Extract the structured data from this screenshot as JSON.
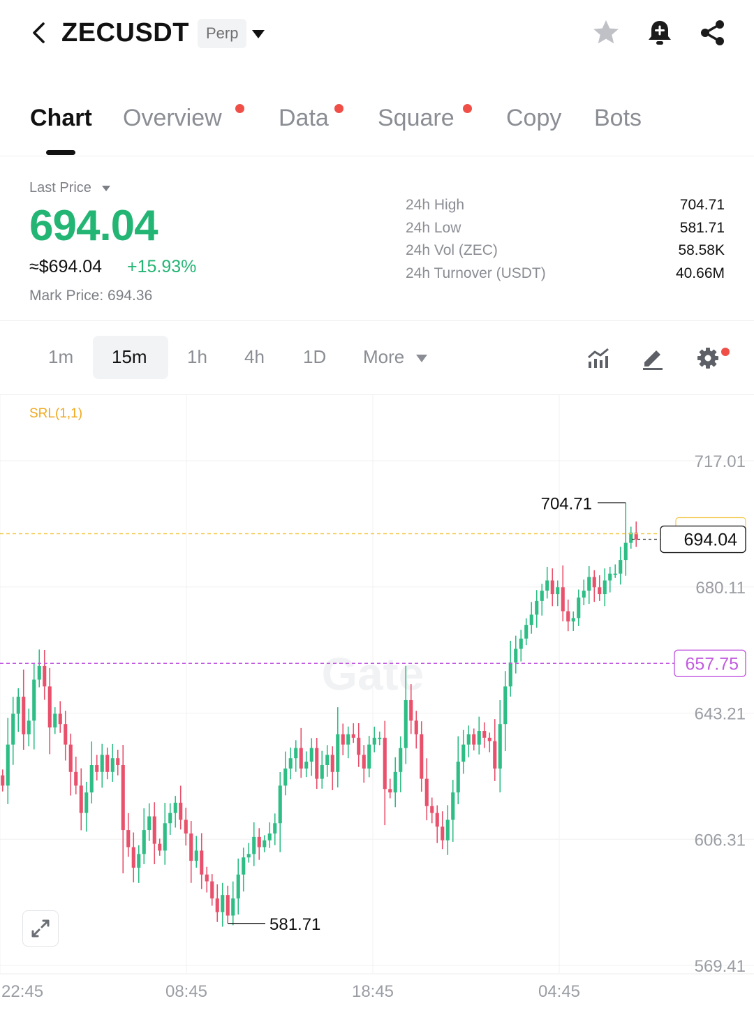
{
  "header": {
    "symbol": "ZECUSDT",
    "contract_type": "Perp",
    "icons": [
      "back-icon",
      "chevron-down-icon",
      "star-icon",
      "bell-icon",
      "share-icon"
    ]
  },
  "tabs": [
    {
      "label": "Chart",
      "active": true,
      "badge": false
    },
    {
      "label": "Overview",
      "active": false,
      "badge": true
    },
    {
      "label": "Data",
      "active": false,
      "badge": true
    },
    {
      "label": "Square",
      "active": false,
      "badge": true
    },
    {
      "label": "Copy",
      "active": false,
      "badge": false
    },
    {
      "label": "Bots",
      "active": false,
      "badge": false
    }
  ],
  "price": {
    "label": "Last Price",
    "last": "694.04",
    "approx_usd": "≈$694.04",
    "change_pct": "+15.93%",
    "mark_price": "Mark Price: 694.36"
  },
  "stats": [
    {
      "label": "24h High",
      "value": "704.71"
    },
    {
      "label": "24h Low",
      "value": "581.71"
    },
    {
      "label": "24h Vol (ZEC)",
      "value": "58.58K"
    },
    {
      "label": "24h Turnover (USDT)",
      "value": "40.66M"
    }
  ],
  "intervals": {
    "items": [
      "1m",
      "15m",
      "1h",
      "4h",
      "1D"
    ],
    "active": "15m",
    "more_label": "More"
  },
  "toolbar_icons": [
    "indicators-icon",
    "draw-icon",
    "settings-icon"
  ],
  "chart_data": {
    "type": "candlestick",
    "indicator_label": "SRL(1,1)",
    "y_ticks": [
      "717.01",
      "680.11",
      "643.21",
      "606.31",
      "569.41"
    ],
    "x_ticks": [
      "22:45",
      "08:45",
      "18:45",
      "04:45"
    ],
    "ylim": [
      569.41,
      717.01
    ],
    "high_label": "704.71",
    "low_label": "581.71",
    "last_price_tag": "694.04",
    "srl_price_tag": "657.75",
    "watermark": "Gate",
    "colors": {
      "up": "#2ebd85",
      "down": "#e8506b",
      "last_line": "#f2c94c",
      "srl_line": "#c25ae0"
    },
    "closes": [
      622,
      634,
      643,
      648,
      637,
      641,
      653,
      657,
      651,
      639,
      643,
      640,
      634,
      626,
      622,
      614,
      620,
      628,
      626,
      631,
      626,
      630,
      628,
      609,
      604,
      598,
      602,
      609,
      613,
      605,
      603,
      611,
      614,
      617,
      612,
      608,
      600,
      603,
      596,
      594,
      589,
      585,
      590,
      584,
      589,
      596,
      601,
      602,
      607,
      604,
      606,
      608,
      611,
      622,
      627,
      630,
      633,
      627,
      629,
      633,
      624,
      628,
      631,
      626,
      637,
      634,
      637,
      636,
      631,
      627,
      634,
      636,
      636,
      621,
      620,
      626,
      633,
      647,
      641,
      637,
      624,
      616,
      614,
      610,
      606,
      612,
      620,
      629,
      634,
      637,
      634,
      638,
      636,
      635,
      627,
      640,
      651,
      658,
      662,
      665,
      669,
      672,
      676,
      679,
      682,
      678,
      680,
      673,
      670,
      671,
      677,
      679,
      683,
      680,
      678,
      682,
      684,
      684,
      688,
      693,
      696,
      694.04
    ]
  }
}
